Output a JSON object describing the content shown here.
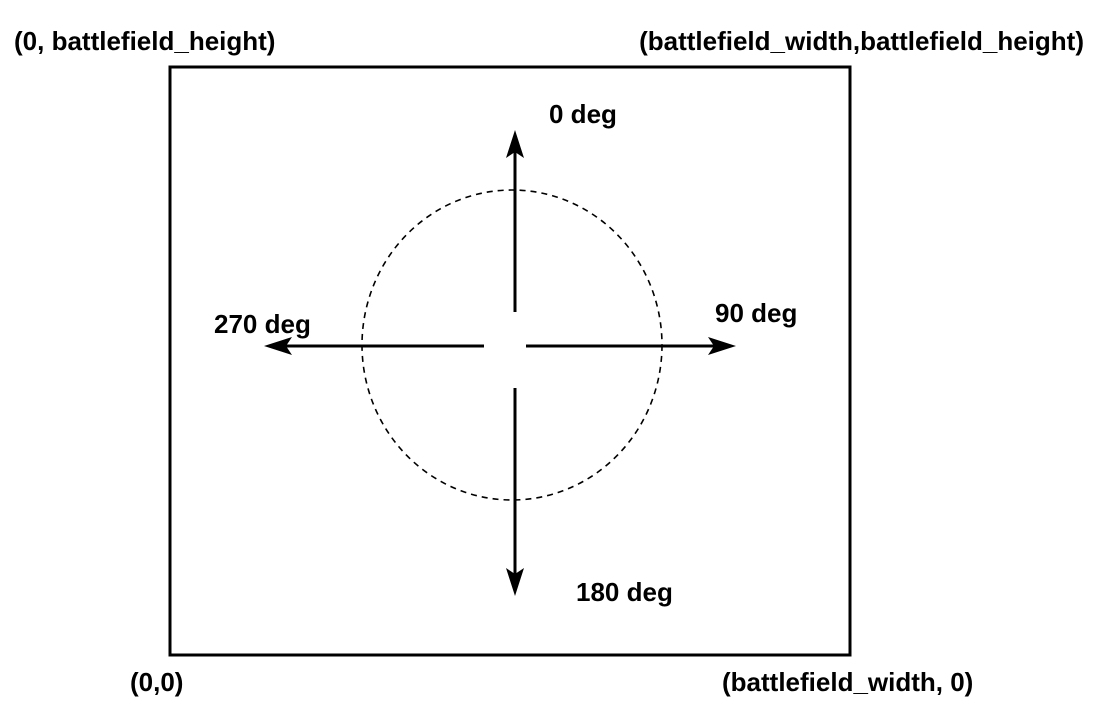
{
  "corners": {
    "top_left": "(0, battlefield_height)",
    "top_right": "(battlefield_width,battlefield_height)",
    "bottom_left": "(0,0)",
    "bottom_right": "(battlefield_width, 0)"
  },
  "headings": {
    "north": "0 deg",
    "east": "90 deg",
    "south": "180 deg",
    "west": "270 deg"
  },
  "colors": {
    "line": "#000000",
    "background": "#ffffff"
  }
}
